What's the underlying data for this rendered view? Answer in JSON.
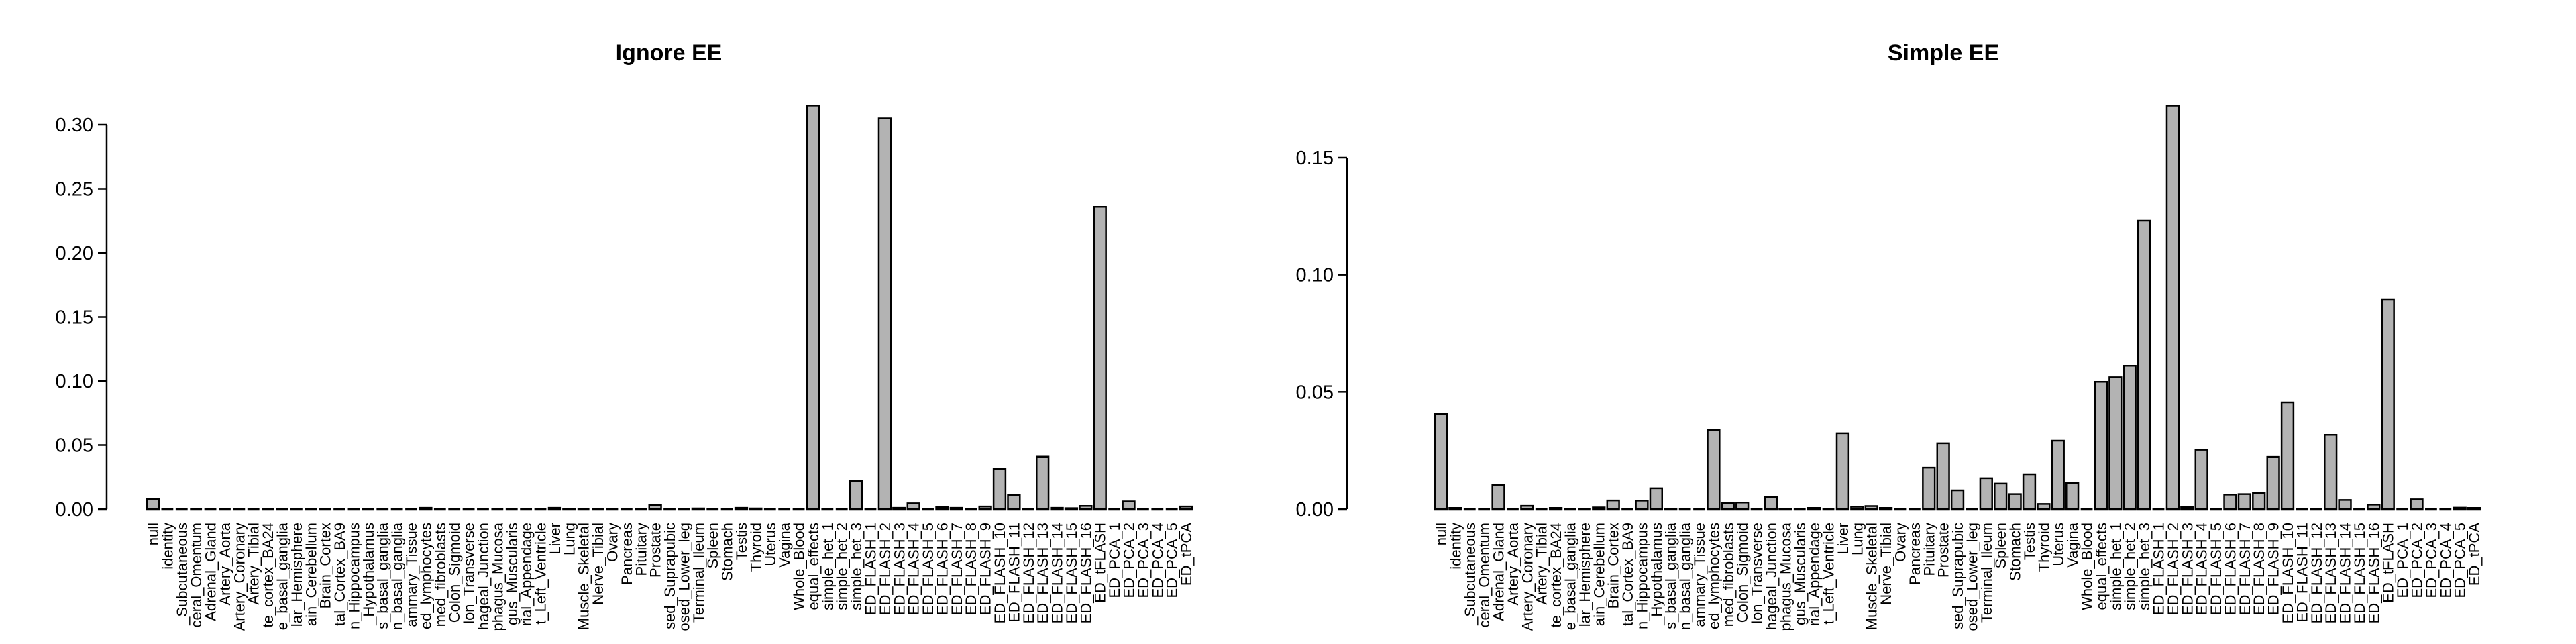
{
  "chart_data": [
    {
      "type": "bar",
      "title": "Ignore EE",
      "xlabel": "",
      "ylabel": "",
      "ylim": [
        0,
        0.3
      ],
      "yticks": [
        0,
        0.05,
        0.1,
        0.15,
        0.2,
        0.25,
        0.3
      ],
      "ytick_labels": [
        "0.00",
        "0.05",
        "0.10",
        "0.15",
        "0.20",
        "0.25",
        "0.30"
      ],
      "bar_color": "#b3b3b3",
      "grid": false,
      "categories": [
        "null",
        "identity",
        "_Subcutaneous",
        "ceral_Omentum",
        "Adrenal_Gland",
        "Artery_Aorta",
        "Artery_Coronary",
        "Artery_Tibial",
        "te_cortex_BA24",
        "e_basal_ganglia",
        "lar_Hemisphere",
        "ain_Cerebellum",
        "Brain_Cortex",
        "tal_Cortex_BA9",
        "n_Hippocampus",
        "_Hypothalamus",
        "s_basal_ganglia",
        "n_basal_ganglia",
        "ammary_Tissue",
        "ed_lymphocytes",
        "med_fibroblasts",
        "Colon_Sigmoid",
        "lon_Transverse",
        "hageal_Junction",
        "phagus_Mucosa",
        "gus_Muscularis",
        "rial_Appendage",
        "t_Left_Ventricle",
        "Liver",
        "Lung",
        "Muscle_Skeletal",
        "Nerve_Tibial",
        "Ovary",
        "Pancreas",
        "Pituitary",
        "Prostate",
        "sed_Suprapubic",
        "osed_Lower_leg",
        "Terminal_Ileum",
        "Spleen",
        "Stomach",
        "Testis",
        "Thyroid",
        "Uterus",
        "Vagina",
        "Whole_Blood",
        "equal_effects",
        "simple_het_1",
        "simple_het_2",
        "simple_het_3",
        "ED_FLASH_1",
        "ED_FLASH_2",
        "ED_FLASH_3",
        "ED_FLASH_4",
        "ED_FLASH_5",
        "ED_FLASH_6",
        "ED_FLASH_7",
        "ED_FLASH_8",
        "ED_FLASH_9",
        "ED_FLASH_10",
        "ED_FLASH_11",
        "ED_FLASH_12",
        "ED_FLASH_13",
        "ED_FLASH_14",
        "ED_FLASH_15",
        "ED_FLASH_16",
        "ED_tFLASH",
        "ED_PCA_1",
        "ED_PCA_2",
        "ED_PCA_3",
        "ED_PCA_4",
        "ED_PCA_5",
        "ED_tPCA"
      ],
      "values": [
        0.008,
        0,
        0,
        0,
        0,
        0,
        0,
        0,
        0,
        0,
        0,
        0,
        0,
        0,
        0,
        0,
        0,
        0,
        0,
        0.001,
        0,
        0,
        0,
        0,
        0,
        0,
        0,
        0,
        0.001,
        0.0003,
        0,
        0,
        0,
        0,
        0,
        0.003,
        0,
        0,
        0.0005,
        0,
        0,
        0.001,
        0.0005,
        0,
        0,
        0,
        0.315,
        0,
        0,
        0.022,
        0,
        0.305,
        0.001,
        0.0045,
        0,
        0.0015,
        0.001,
        0,
        0.002,
        0.0315,
        0.011,
        0,
        0.041,
        0.001,
        0.0007,
        0.0025,
        0.236,
        0,
        0.006,
        0,
        0,
        0,
        0.002
      ]
    },
    {
      "type": "bar",
      "title": "Simple EE",
      "xlabel": "",
      "ylabel": "",
      "ylim": [
        0,
        0.15
      ],
      "yticks": [
        0,
        0.05,
        0.1,
        0.15
      ],
      "ytick_labels": [
        "0.00",
        "0.05",
        "0.10",
        "0.15"
      ],
      "bar_color": "#b3b3b3",
      "grid": false,
      "categories": [
        "null",
        "identity",
        "_Subcutaneous",
        "ceral_Omentum",
        "Adrenal_Gland",
        "Artery_Aorta",
        "Artery_Coronary",
        "Artery_Tibial",
        "te_cortex_BA24",
        "e_basal_ganglia",
        "lar_Hemisphere",
        "ain_Cerebellum",
        "Brain_Cortex",
        "tal_Cortex_BA9",
        "n_Hippocampus",
        "_Hypothalamus",
        "s_basal_ganglia",
        "n_basal_ganglia",
        "ammary_Tissue",
        "ed_lymphocytes",
        "med_fibroblasts",
        "Colon_Sigmoid",
        "lon_Transverse",
        "hageal_Junction",
        "phagus_Mucosa",
        "gus_Muscularis",
        "rial_Appendage",
        "t_Left_Ventricle",
        "Liver",
        "Lung",
        "Muscle_Skeletal",
        "Nerve_Tibial",
        "Ovary",
        "Pancreas",
        "Pituitary",
        "Prostate",
        "sed_Suprapubic",
        "osed_Lower_leg",
        "Terminal_Ileum",
        "Spleen",
        "Stomach",
        "Testis",
        "Thyroid",
        "Uterus",
        "Vagina",
        "Whole_Blood",
        "equal_effects",
        "simple_het_1",
        "simple_het_2",
        "simple_het_3",
        "ED_FLASH_1",
        "ED_FLASH_2",
        "ED_FLASH_3",
        "ED_FLASH_4",
        "ED_FLASH_5",
        "ED_FLASH_6",
        "ED_FLASH_7",
        "ED_FLASH_8",
        "ED_FLASH_9",
        "ED_FLASH_10",
        "ED_FLASH_11",
        "ED_FLASH_12",
        "ED_FLASH_13",
        "ED_FLASH_14",
        "ED_FLASH_15",
        "ED_FLASH_16",
        "ED_tFLASH",
        "ED_PCA_1",
        "ED_PCA_2",
        "ED_PCA_3",
        "ED_PCA_4",
        "ED_PCA_5",
        "ED_tPCA"
      ],
      "values": [
        0.0406,
        0.0005,
        0,
        0,
        0.0103,
        0,
        0.0014,
        0,
        0.0005,
        0,
        0,
        0.0007,
        0.0037,
        0,
        0.0036,
        0.0089,
        0.0002,
        0,
        0,
        0.0338,
        0.0026,
        0.0028,
        0,
        0.0051,
        0.0002,
        0,
        0.0005,
        0,
        0.0324,
        0.001,
        0.0013,
        0.0005,
        0,
        0,
        0.0177,
        0.0281,
        0.008,
        0,
        0.0132,
        0.0109,
        0.0064,
        0.0149,
        0.0022,
        0.0292,
        0.0111,
        0,
        0.0543,
        0.0563,
        0.0612,
        0.1231,
        0,
        0.1722,
        0.0009,
        0.0253,
        0,
        0.0062,
        0.0064,
        0.0068,
        0.0223,
        0.0455,
        0,
        0,
        0.0317,
        0.0039,
        0,
        0.0019,
        0.0896,
        0,
        0.0042,
        0,
        0,
        0.0006,
        0.0005
      ]
    }
  ]
}
